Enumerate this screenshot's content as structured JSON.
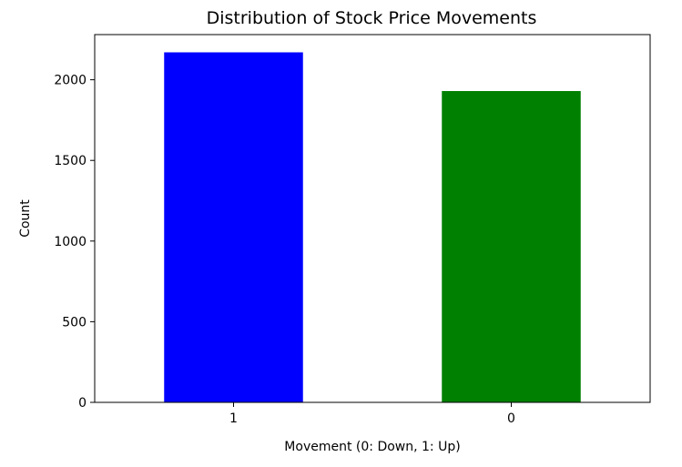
{
  "chart_data": {
    "type": "bar",
    "title": "Distribution of Stock Price Movements",
    "xlabel": "Movement (0: Down, 1: Up)",
    "ylabel": "Count",
    "categories": [
      "1",
      "0"
    ],
    "values": [
      2170,
      1930
    ],
    "colors": [
      "#0000ff",
      "#008000"
    ],
    "ylim": [
      0,
      2280
    ],
    "yticks": [
      0,
      500,
      1000,
      1500,
      2000
    ],
    "grid": false
  }
}
